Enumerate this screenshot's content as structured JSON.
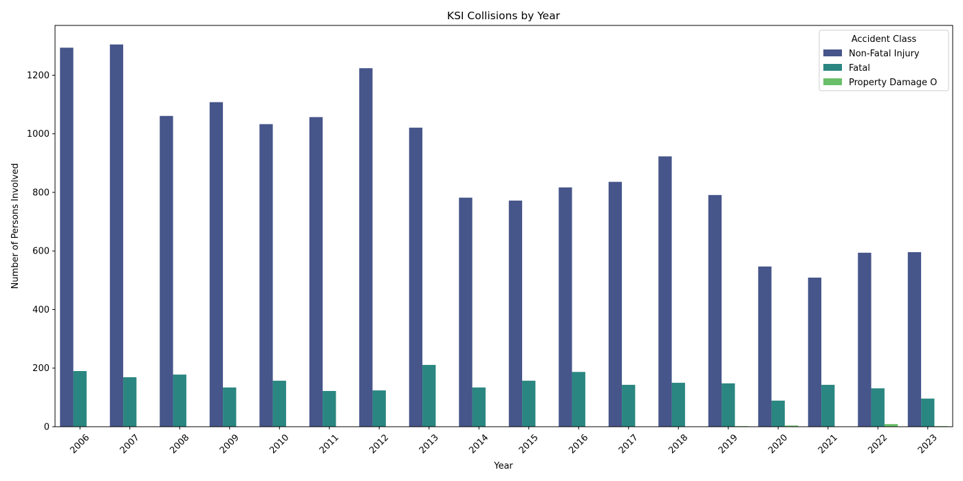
{
  "chart_data": {
    "type": "bar",
    "title": "KSI Collisions by Year",
    "xlabel": "Year",
    "ylabel": "Number of Persons Involved",
    "categories": [
      "2006",
      "2007",
      "2008",
      "2009",
      "2010",
      "2011",
      "2012",
      "2013",
      "2014",
      "2015",
      "2016",
      "2017",
      "2018",
      "2019",
      "2020",
      "2021",
      "2022",
      "2023"
    ],
    "ylim": [
      0,
      1370
    ],
    "yticks": [
      0,
      200,
      400,
      600,
      800,
      1000,
      1200
    ],
    "grid": false,
    "legend": {
      "title": "Accident Class",
      "placement": "top-right"
    },
    "series": [
      {
        "name": "Non-Fatal Injury",
        "color": "#46558a",
        "values": [
          1294,
          1305,
          1061,
          1108,
          1033,
          1057,
          1224,
          1021,
          782,
          772,
          817,
          836,
          923,
          791,
          547,
          509,
          594,
          596
        ]
      },
      {
        "name": "Fatal",
        "color": "#2a8680",
        "values": [
          190,
          169,
          178,
          134,
          157,
          122,
          124,
          211,
          134,
          157,
          187,
          143,
          150,
          148,
          89,
          143,
          131,
          96
        ]
      },
      {
        "name": "Property Damage O",
        "color": "#6abf69",
        "values": [
          0,
          0,
          0,
          0,
          0,
          0,
          0,
          0,
          0,
          0,
          0,
          0,
          0,
          2,
          4,
          0,
          9,
          2
        ]
      }
    ]
  }
}
